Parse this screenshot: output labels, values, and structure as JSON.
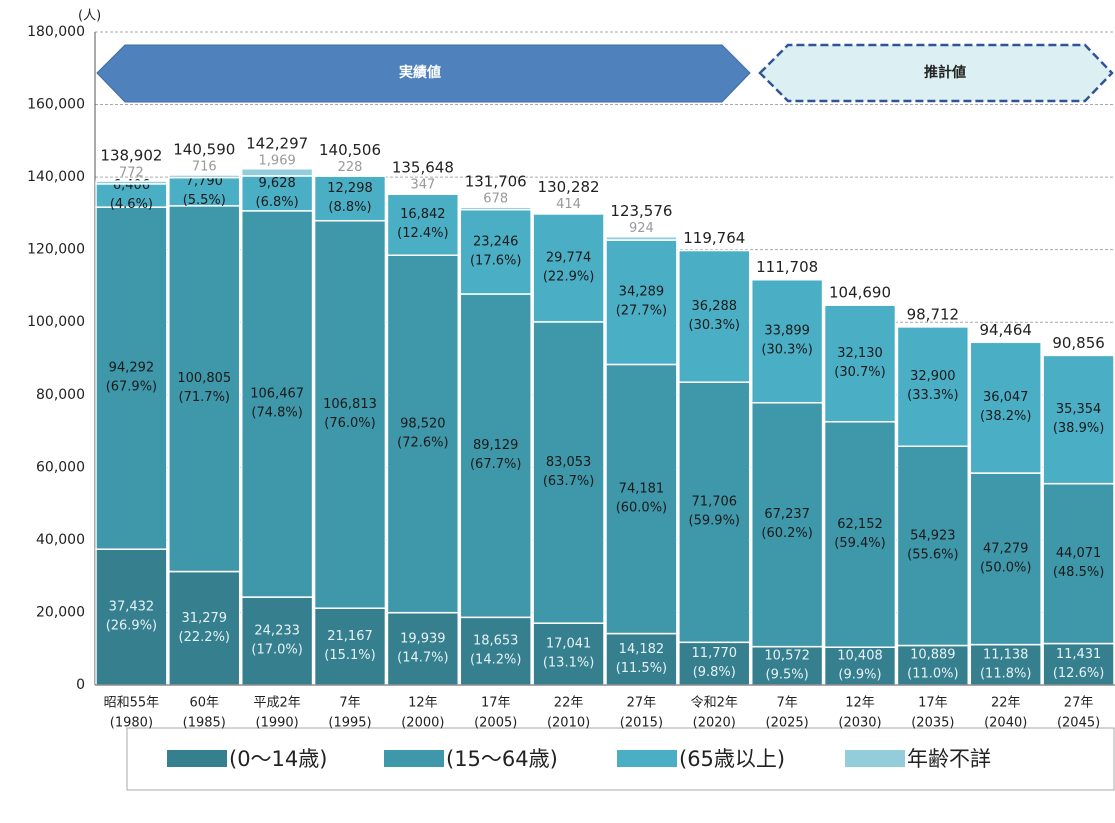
{
  "chart_data": {
    "type": "bar",
    "stacked": true,
    "y_unit": "(人)",
    "banners": [
      "実績値",
      "推計値"
    ],
    "categories": [
      [
        "昭和55年",
        "(1980)"
      ],
      [
        "60年",
        "(1985)"
      ],
      [
        "平成2年",
        "(1990)"
      ],
      [
        "7年",
        "(1995)"
      ],
      [
        "12年",
        "(2000)"
      ],
      [
        "17年",
        "(2005)"
      ],
      [
        "22年",
        "(2010)"
      ],
      [
        "27年",
        "(2015)"
      ],
      [
        "令和2年",
        "(2020)"
      ],
      [
        "7年",
        "(2025)"
      ],
      [
        "12年",
        "(2030)"
      ],
      [
        "17年",
        "(2035)"
      ],
      [
        "22年",
        "(2040)"
      ],
      [
        "27年",
        "(2045)"
      ]
    ],
    "series": [
      {
        "name": "(0～14歳)",
        "color": "#367f8f",
        "label_color": "#e6f2f5",
        "values": [
          37432,
          31279,
          24233,
          21167,
          19939,
          18653,
          17041,
          14182,
          11770,
          10572,
          10408,
          10889,
          11138,
          11431
        ],
        "value_labels": [
          "37,432",
          "31,279",
          "24,233",
          "21,167",
          "19,939",
          "18,653",
          "17,041",
          "14,182",
          "11,770",
          "10,572",
          "10,408",
          "10,889",
          "11,138",
          "11,431"
        ],
        "percent_labels": [
          "(26.9%)",
          "(22.2%)",
          "(17.0%)",
          "(15.1%)",
          "(14.7%)",
          "(14.2%)",
          "(13.1%)",
          "(11.5%)",
          "(9.8%)",
          "(9.5%)",
          "(9.9%)",
          "(11.0%)",
          "(11.8%)",
          "(12.6%)"
        ]
      },
      {
        "name": "(15～64歳)",
        "color": "#3f97aa",
        "label_color": "#1a1a1a",
        "values": [
          94292,
          100805,
          106467,
          106813,
          98520,
          89129,
          83053,
          74181,
          71706,
          67237,
          62152,
          54923,
          47279,
          44071
        ],
        "value_labels": [
          "94,292",
          "100,805",
          "106,467",
          "106,813",
          "98,520",
          "89,129",
          "83,053",
          "74,181",
          "71,706",
          "67,237",
          "62,152",
          "54,923",
          "47,279",
          "44,071"
        ],
        "percent_labels": [
          "(67.9%)",
          "(71.7%)",
          "(74.8%)",
          "(76.0%)",
          "(72.6%)",
          "(67.7%)",
          "(63.7%)",
          "(60.0%)",
          "(59.9%)",
          "(60.2%)",
          "(59.4%)",
          "(55.6%)",
          "(50.0%)",
          "(48.5%)"
        ]
      },
      {
        "name": "(65歳以上)",
        "color": "#4aaec5",
        "label_color": "#1a1a1a",
        "values": [
          6406,
          7790,
          9628,
          12298,
          16842,
          23246,
          29774,
          34289,
          36288,
          33899,
          32130,
          32900,
          36047,
          35354
        ],
        "value_labels": [
          "6,406",
          "7,790",
          "9,628",
          "12,298",
          "16,842",
          "23,246",
          "29,774",
          "34,289",
          "36,288",
          "33,899",
          "32,130",
          "32,900",
          "36,047",
          "35,354"
        ],
        "percent_labels": [
          "(4.6%)",
          "(5.5%)",
          "(6.8%)",
          "(8.8%)",
          "(12.4%)",
          "(17.6%)",
          "(22.9%)",
          "(27.7%)",
          "(30.3%)",
          "(30.3%)",
          "(30.7%)",
          "(33.3%)",
          "(38.2%)",
          "(38.9%)"
        ]
      },
      {
        "name": "年齢不詳",
        "color": "#93cddb",
        "label_color": "#999999",
        "values": [
          772,
          716,
          1969,
          228,
          347,
          678,
          414,
          924,
          null,
          null,
          null,
          null,
          null,
          null
        ],
        "value_labels": [
          "772",
          "716",
          "1,969",
          "228",
          "347",
          "678",
          "414",
          "924",
          null,
          null,
          null,
          null,
          null,
          null
        ]
      }
    ],
    "totals": [
      138902,
      140590,
      142297,
      140506,
      135648,
      131706,
      130282,
      123576,
      119764,
      111708,
      104690,
      98712,
      94464,
      90856
    ],
    "total_labels": [
      "138,902",
      "140,590",
      "142,297",
      "140,506",
      "135,648",
      "131,706",
      "130,282",
      "123,576",
      "119,764",
      "111,708",
      "104,690",
      "98,712",
      "94,464",
      "90,856"
    ],
    "ylim": [
      0,
      180000
    ],
    "yticks": [
      0,
      {
        "value": 20000,
        "label": "20,000"
      },
      {
        "value": 40000,
        "label": "40,000"
      },
      {
        "value": 60000,
        "label": "60,000"
      },
      {
        "value": 80000,
        "label": "80,000"
      },
      {
        "value": 100000,
        "label": "100,000"
      },
      {
        "value": 120000,
        "label": "120,000"
      },
      {
        "value": 140000,
        "label": "140,000"
      },
      {
        "value": 160000,
        "label": "160,000"
      },
      {
        "value": 180000,
        "label": "180,000"
      }
    ],
    "grid": true
  }
}
